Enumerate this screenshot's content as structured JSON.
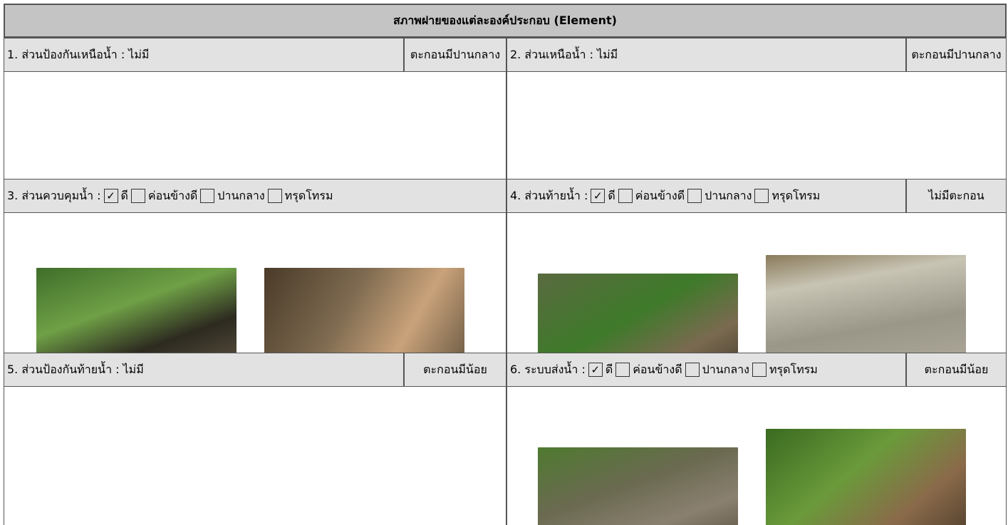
{
  "header": {
    "title": "สภาพฝายของแต่ละองค์ประกอบ (Element)"
  },
  "sections": [
    {
      "label": "1. ส่วนป้องกันเหนือน้ำ : ไม่มี",
      "status": "ตะกอนมีปานกลาง"
    },
    {
      "label": "2. ส่วนเหนือน้ำ : ไม่มี",
      "status": "ตะกอนมีปานกลาง"
    },
    {
      "label": "3. ส่วนควบคุมน้ำ :",
      "options": [
        {
          "label": "ดี",
          "checked": true
        },
        {
          "label": "ค่อนข้างดี",
          "checked": false
        },
        {
          "label": "ปานกลาง",
          "checked": false
        },
        {
          "label": "ทรุดโทรม",
          "checked": false
        }
      ]
    },
    {
      "label": "4. ส่วนท้ายน้ำ :",
      "options": [
        {
          "label": "ดี",
          "checked": true
        },
        {
          "label": "ค่อนข้างดี",
          "checked": false
        },
        {
          "label": "ปานกลาง",
          "checked": false
        },
        {
          "label": "ทรุดโทรม",
          "checked": false
        }
      ],
      "status": "ไม่มีตะกอน"
    },
    {
      "label": "5. ส่วนป้องกันท้ายน้ำ : ไม่มี",
      "status": "ตะกอนมีน้อย"
    },
    {
      "label": "6. ระบบส่งน้ำ :",
      "options": [
        {
          "label": "ดี",
          "checked": true
        },
        {
          "label": "ค่อนข้างดี",
          "checked": false
        },
        {
          "label": "ปานกลาง",
          "checked": false
        },
        {
          "label": "ทรุดโทรม",
          "checked": false
        }
      ],
      "status": "ตะกอนมีน้อย"
    }
  ]
}
